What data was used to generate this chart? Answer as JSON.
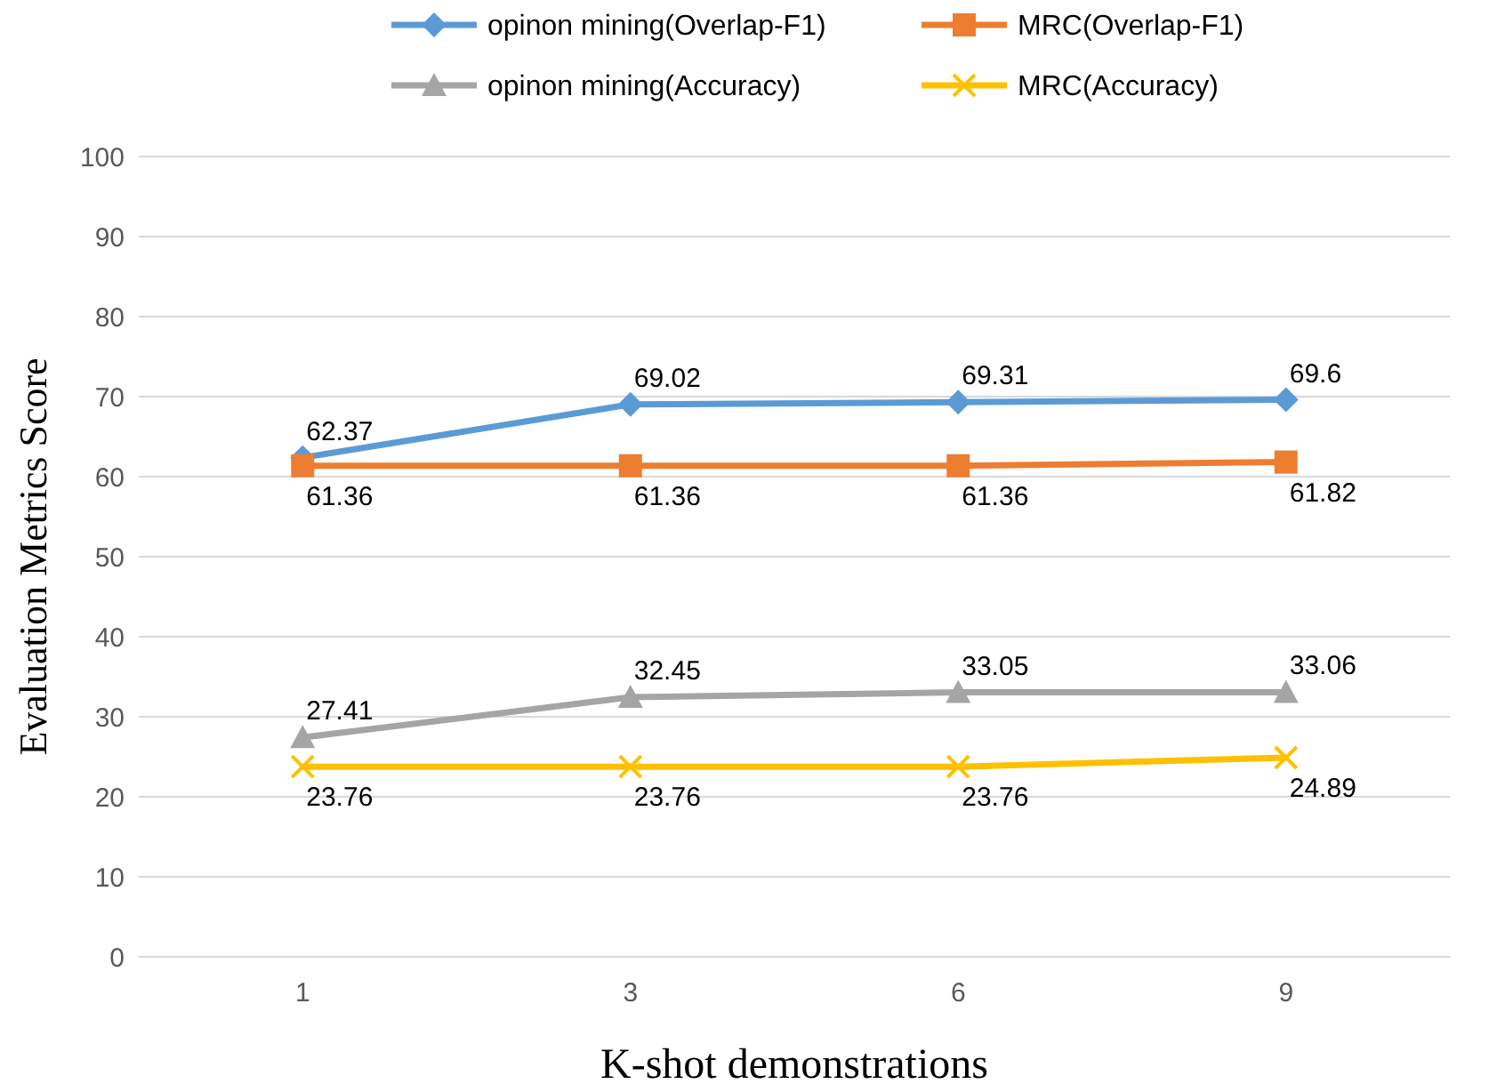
{
  "chart_data": {
    "type": "line",
    "xlabel": "K-shot demonstrations",
    "ylabel": "Evaluation Metrics Score",
    "categories": [
      "1",
      "3",
      "6",
      "9"
    ],
    "ylim": [
      0,
      100
    ],
    "yticks": [
      0,
      10,
      20,
      30,
      40,
      50,
      60,
      70,
      80,
      90,
      100
    ],
    "grid": "y",
    "legend": "top",
    "data_labels": true,
    "line_style": "solid",
    "series": [
      {
        "name": "opinon mining(Overlap-F1)",
        "color": "#5b9bd5",
        "marker": "diamond",
        "values": [
          62.37,
          69.02,
          69.31,
          69.6
        ]
      },
      {
        "name": "MRC(Overlap-F1)",
        "color": "#ed7d31",
        "marker": "square",
        "values": [
          61.36,
          61.36,
          61.36,
          61.82
        ]
      },
      {
        "name": "opinon mining(Accuracy)",
        "color": "#a5a5a5",
        "marker": "triangle",
        "values": [
          27.41,
          32.45,
          33.05,
          33.06
        ]
      },
      {
        "name": "MRC(Accuracy)",
        "color": "#ffc000",
        "marker": "cross",
        "values": [
          23.76,
          23.76,
          23.76,
          24.89
        ]
      }
    ]
  }
}
